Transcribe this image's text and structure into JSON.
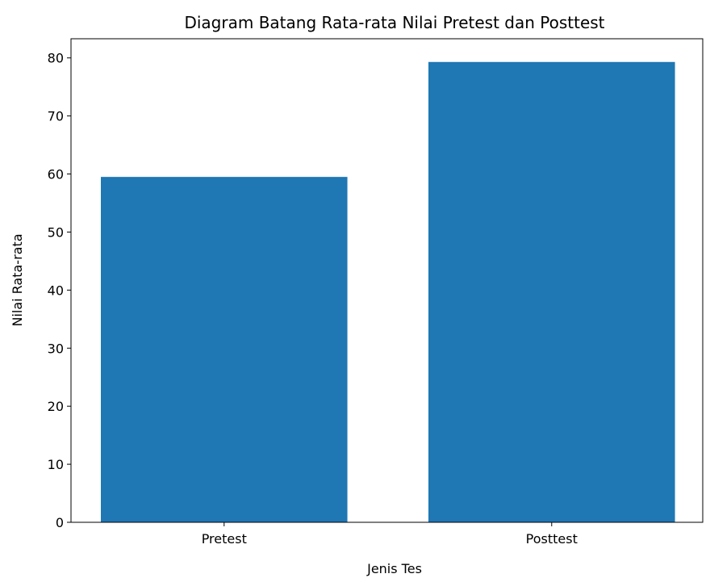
{
  "chart_data": {
    "type": "bar",
    "title": "Diagram Batang Rata-rata Nilai Pretest dan Posttest",
    "xlabel": "Jenis Tes",
    "ylabel": "Nilai Rata-rata",
    "categories": [
      "Pretest",
      "Posttest"
    ],
    "values": [
      59.5,
      79.3
    ],
    "ylim": [
      0,
      83.3
    ],
    "yticks": [
      0,
      10,
      20,
      30,
      40,
      50,
      60,
      70,
      80
    ],
    "grid": false,
    "legend": "none",
    "bar_color": "#1f77b4"
  }
}
